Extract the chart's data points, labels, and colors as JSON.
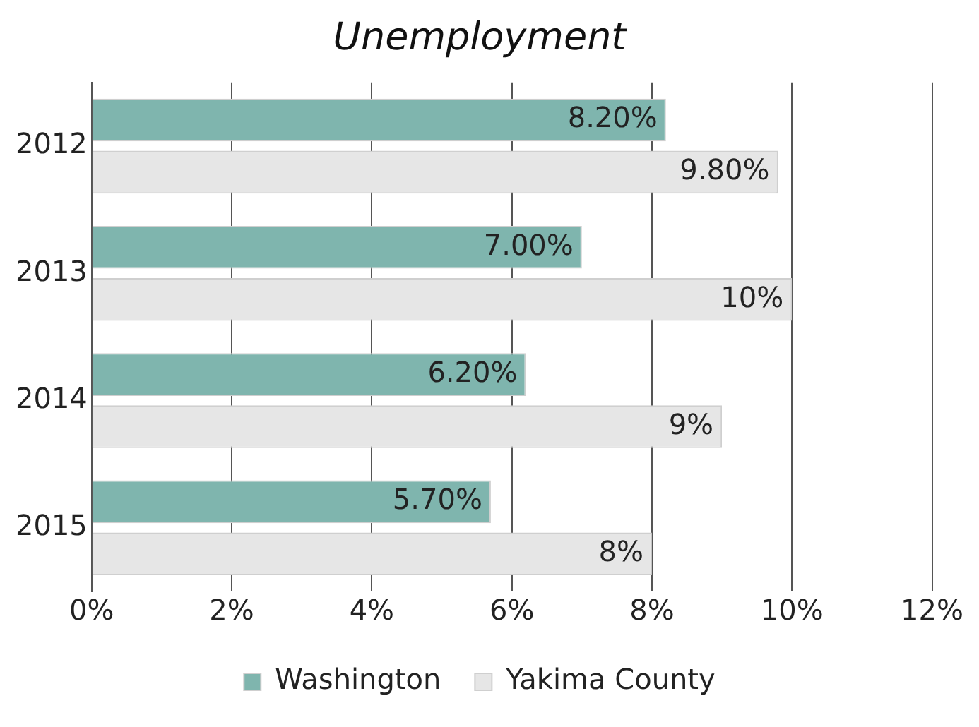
{
  "chart_data": {
    "type": "bar",
    "orientation": "horizontal",
    "title": "Unemployment",
    "categories": [
      "2012",
      "2013",
      "2014",
      "2015"
    ],
    "series": [
      {
        "name": "Washington",
        "color": "#7fb5ae",
        "values": [
          8.2,
          7.0,
          6.2,
          5.7
        ],
        "value_labels": [
          "8.20%",
          "7.00%",
          "6.20%",
          "5.70%"
        ]
      },
      {
        "name": "Yakima County",
        "color": "#e6e6e6",
        "values": [
          9.8,
          10,
          9,
          8
        ],
        "value_labels": [
          "9.80%",
          "10%",
          "9%",
          "8%"
        ]
      }
    ],
    "xlim": [
      0,
      12
    ],
    "xticks": [
      {
        "value": 0,
        "label": "0%"
      },
      {
        "value": 2,
        "label": "2%"
      },
      {
        "value": 4,
        "label": "4%"
      },
      {
        "value": 6,
        "label": "6%"
      },
      {
        "value": 8,
        "label": "8%"
      },
      {
        "value": 10,
        "label": "10%"
      },
      {
        "value": 12,
        "label": "12%"
      }
    ],
    "grid": "x",
    "legend": "bottom"
  }
}
